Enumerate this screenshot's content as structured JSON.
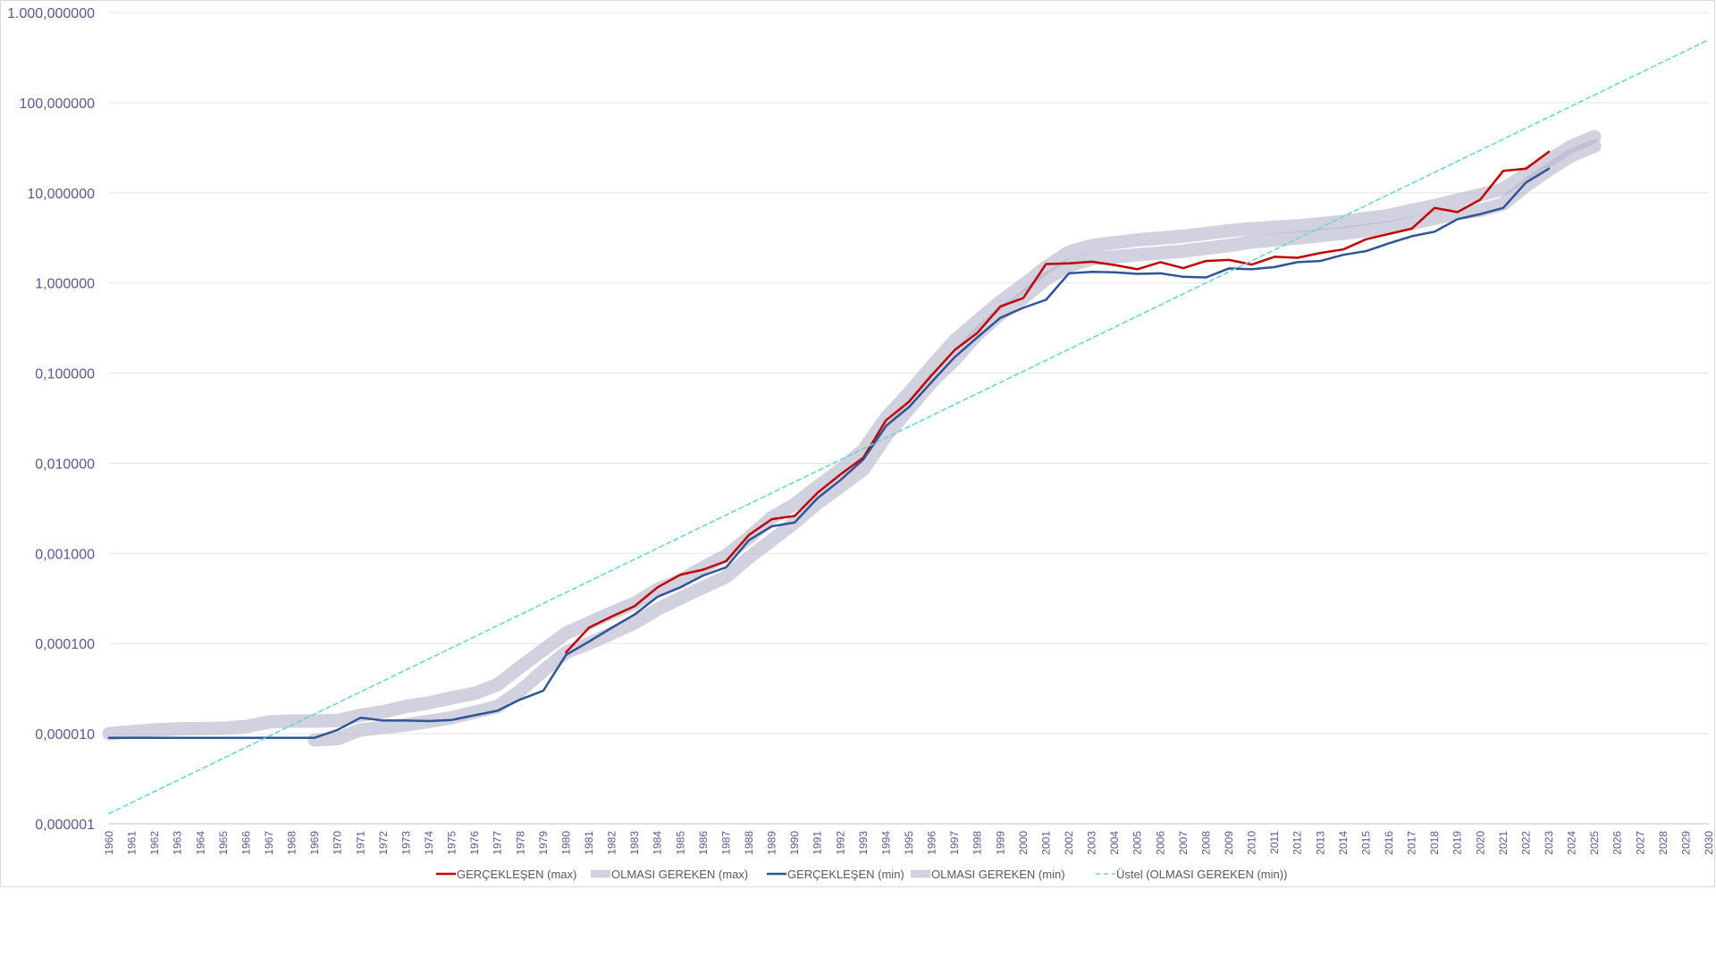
{
  "chart_data": {
    "type": "line",
    "title": "",
    "xlabel": "",
    "ylabel": "",
    "y_scale": "log",
    "ylim": [
      1e-06,
      1000
    ],
    "xlim": [
      1960,
      2030
    ],
    "grid": "horizontal",
    "legend_position": "bottom",
    "y_tick_values": [
      1e-06,
      1e-05,
      0.0001,
      0.001,
      0.01,
      0.1,
      1,
      10,
      100,
      1000
    ],
    "y_tick_labels": [
      "0,000001",
      "0,000010",
      "0,000100",
      "0,001000",
      "0,010000",
      "0,100000",
      "1,000000",
      "10,000000",
      "100,000000",
      "1.000,000000"
    ],
    "x_tick_labels": [
      "1960",
      "1961",
      "1962",
      "1963",
      "1964",
      "1965",
      "1966",
      "1967",
      "1968",
      "1969",
      "1970",
      "1971",
      "1972",
      "1973",
      "1974",
      "1975",
      "1976",
      "1977",
      "1978",
      "1979",
      "1980",
      "1981",
      "1982",
      "1983",
      "1984",
      "1985",
      "1986",
      "1987",
      "1988",
      "1989",
      "1990",
      "1991",
      "1992",
      "1993",
      "1994",
      "1995",
      "1996",
      "1997",
      "1998",
      "1999",
      "2000",
      "2001",
      "2002",
      "2003",
      "2004",
      "2005",
      "2006",
      "2007",
      "2008",
      "2009",
      "2010",
      "2011",
      "2012",
      "2013",
      "2014",
      "2015",
      "2016",
      "2017",
      "2018",
      "2019",
      "2020",
      "2021",
      "2022",
      "2023",
      "2024",
      "2025",
      "2026",
      "2027",
      "2028",
      "2029",
      "2030"
    ],
    "series": [
      {
        "name": "OLMASI GEREKEN (max)",
        "color": "#b7b5cc",
        "style": "band",
        "x": [
          1960,
          1962,
          1963,
          1965,
          1966,
          1967,
          1968,
          1969,
          1970,
          1971,
          1972,
          1973,
          1974,
          1975,
          1976,
          1977,
          1978,
          1979,
          1980,
          1981,
          1982,
          1983,
          1984,
          1985,
          1986,
          1987,
          1988,
          1989,
          1990,
          1991,
          1992,
          1993,
          1994,
          1995,
          1996,
          1997,
          1998,
          1999,
          2000,
          2001,
          2002,
          2003,
          2005,
          2007,
          2009,
          2010,
          2012,
          2014,
          2016,
          2017,
          2018,
          2019,
          2020,
          2021,
          2022,
          2023,
          2024,
          2025
        ],
        "values": [
          1e-05,
          1.1e-05,
          1.13e-05,
          1.15e-05,
          1.2e-05,
          1.35e-05,
          1.38e-05,
          1.38e-05,
          1.4e-05,
          1.6e-05,
          1.75e-05,
          2e-05,
          2.2e-05,
          2.5e-05,
          2.8e-05,
          3.5e-05,
          5.5e-05,
          8.5e-05,
          0.00013,
          0.00017,
          0.00022,
          0.00028,
          0.0004,
          0.0005,
          0.0007,
          0.00095,
          0.0015,
          0.0025,
          0.0035,
          0.0055,
          0.0085,
          0.014,
          0.032,
          0.06,
          0.12,
          0.23,
          0.38,
          0.62,
          0.95,
          1.5,
          2.2,
          2.6,
          3,
          3.3,
          3.8,
          4,
          4.3,
          4.8,
          5.6,
          6.4,
          7.2,
          8.3,
          9.5,
          11,
          16,
          23,
          33,
          42
        ]
      },
      {
        "name": "OLMASI GEREKEN (min)",
        "color": "#b7b5cc",
        "style": "band",
        "x": [
          1969,
          1970,
          1971,
          1973,
          1975,
          1977,
          1978,
          1979,
          1980,
          1981,
          1982,
          1983,
          1984,
          1985,
          1986,
          1987,
          1988,
          1989,
          1990,
          1991,
          1992,
          1993,
          1994,
          1995,
          1996,
          1997,
          1998,
          1999,
          2000,
          2001,
          2002,
          2003,
          2005,
          2007,
          2009,
          2010,
          2012,
          2014,
          2016,
          2017,
          2018,
          2019,
          2020,
          2021,
          2022,
          2023,
          2024,
          2025
        ],
        "values": [
          8.5e-06,
          8.8e-06,
          1.1e-05,
          1.25e-05,
          1.5e-05,
          2e-05,
          3e-05,
          5e-05,
          8e-05,
          0.0001,
          0.00013,
          0.00017,
          0.00024,
          0.00032,
          0.00042,
          0.00055,
          0.0009,
          0.0014,
          0.0022,
          0.0036,
          0.0055,
          0.0085,
          0.02,
          0.04,
          0.08,
          0.14,
          0.27,
          0.45,
          0.68,
          1.1,
          1.55,
          1.85,
          2.05,
          2.25,
          2.6,
          2.85,
          3.15,
          3.55,
          4.1,
          4.6,
          5.2,
          5.9,
          6.4,
          7.5,
          12,
          18,
          26,
          33
        ]
      },
      {
        "name": "GERÇEKLEŞEN (max)",
        "color": "#c00000",
        "style": "line",
        "x": [
          1980,
          1981,
          1982,
          1983,
          1984,
          1985,
          1986,
          1987,
          1988,
          1989,
          1990,
          1991,
          1992,
          1993,
          1994,
          1995,
          1996,
          1997,
          1998,
          1999,
          2000,
          2001,
          2002,
          2003,
          2004,
          2005,
          2006,
          2007,
          2008,
          2009,
          2010,
          2011,
          2012,
          2013,
          2014,
          2015,
          2016,
          2017,
          2018,
          2019,
          2020,
          2021,
          2022,
          2023
        ],
        "values": [
          8e-05,
          0.00015,
          0.0002,
          0.00026,
          0.00042,
          0.00058,
          0.00066,
          0.00082,
          0.0016,
          0.0024,
          0.0026,
          0.0047,
          0.0075,
          0.0115,
          0.03,
          0.048,
          0.095,
          0.18,
          0.28,
          0.55,
          0.68,
          1.62,
          1.65,
          1.72,
          1.58,
          1.42,
          1.7,
          1.46,
          1.75,
          1.8,
          1.6,
          1.95,
          1.9,
          2.15,
          2.35,
          3.05,
          3.5,
          4,
          6.8,
          6.1,
          8.4,
          17.5,
          18.5,
          28.5
        ]
      },
      {
        "name": "GERÇEKLEŞEN (min)",
        "color": "#2f5597",
        "style": "line",
        "x": [
          1960,
          1961,
          1962,
          1963,
          1964,
          1965,
          1966,
          1967,
          1968,
          1969,
          1970,
          1971,
          1972,
          1973,
          1974,
          1975,
          1976,
          1977,
          1978,
          1979,
          1980,
          1981,
          1982,
          1983,
          1984,
          1985,
          1986,
          1987,
          1988,
          1989,
          1990,
          1991,
          1992,
          1993,
          1994,
          1995,
          1996,
          1997,
          1998,
          1999,
          2000,
          2001,
          2002,
          2003,
          2004,
          2005,
          2006,
          2007,
          2008,
          2009,
          2010,
          2011,
          2012,
          2013,
          2014,
          2015,
          2016,
          2017,
          2018,
          2019,
          2020,
          2021,
          2022,
          2023
        ],
        "values": [
          9e-06,
          9e-06,
          9e-06,
          9e-06,
          9e-06,
          9e-06,
          9e-06,
          9e-06,
          9e-06,
          9e-06,
          1.1e-05,
          1.5e-05,
          1.4e-05,
          1.4e-05,
          1.38e-05,
          1.42e-05,
          1.6e-05,
          1.8e-05,
          2.4e-05,
          3e-05,
          7.5e-05,
          0.000105,
          0.00015,
          0.00021,
          0.00033,
          0.00042,
          0.00057,
          0.0007,
          0.0014,
          0.002,
          0.0022,
          0.0041,
          0.0065,
          0.011,
          0.026,
          0.042,
          0.08,
          0.15,
          0.25,
          0.41,
          0.53,
          0.65,
          1.28,
          1.33,
          1.31,
          1.26,
          1.28,
          1.17,
          1.15,
          1.45,
          1.42,
          1.5,
          1.7,
          1.75,
          2.05,
          2.25,
          2.75,
          3.3,
          3.7,
          5.1,
          5.8,
          6.8,
          13,
          18.5
        ]
      },
      {
        "name": "Üstel (OLMASI GEREKEN (min))",
        "color": "#6fd4d0",
        "style": "dashed",
        "x": [
          1960,
          2030
        ],
        "values": [
          1.3e-06,
          500
        ]
      }
    ],
    "legend_order": [
      "GERÇEKLEŞEN (max)",
      "OLMASI GEREKEN (max)",
      "GERÇEKLEŞEN (min)",
      "OLMASI GEREKEN (min)",
      "Üstel (OLMASI GEREKEN (min))"
    ]
  }
}
